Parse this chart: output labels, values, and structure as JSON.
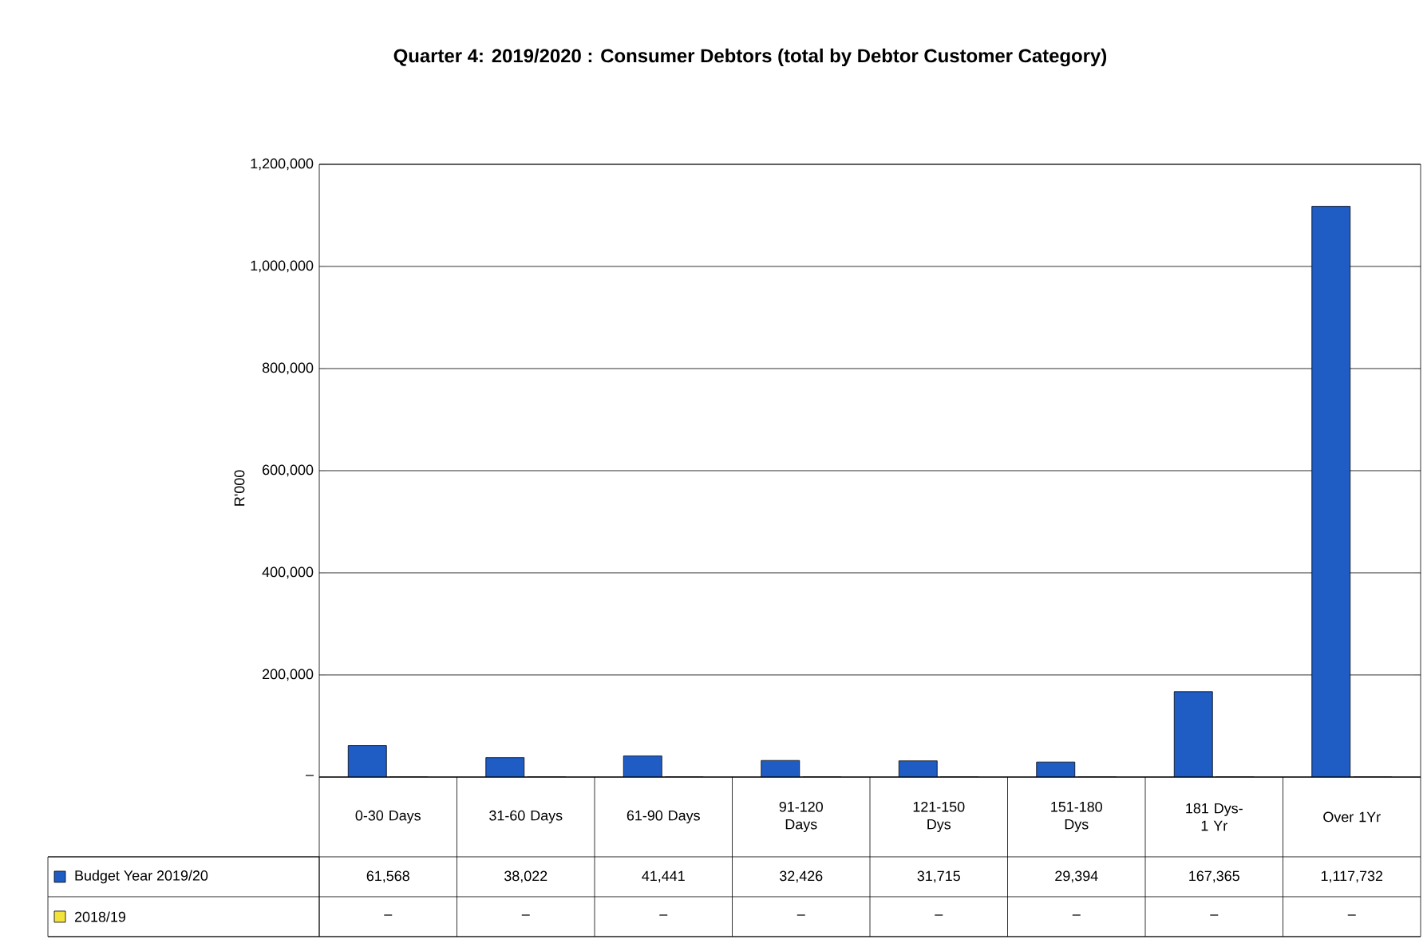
{
  "chart_data": {
    "type": "bar",
    "title": "Quarter 4: 2019/2020 : Consumer Debtors (total by Debtor Customer Category)",
    "ylabel": "R'000",
    "categories": [
      "0-30 Days",
      "31-60 Days",
      "61-90 Days",
      "91-120 Days",
      "121-150 Dys",
      "151-180 Dys",
      "181 Dys- 1 Yr",
      "Over 1Yr"
    ],
    "series": [
      {
        "name": "Budget Year 2019/20",
        "color": "#1f5cc4",
        "values": [
          61568,
          38022,
          41441,
          32426,
          31715,
          29394,
          167365,
          1117732
        ],
        "value_labels": [
          "61,568",
          "38,022",
          "41,441",
          "32,426",
          "31,715",
          "29,394",
          "167,365",
          "1,117,732"
        ]
      },
      {
        "name": "2018/19",
        "color": "#f2e33c",
        "values": [
          0,
          0,
          0,
          0,
          0,
          0,
          0,
          0
        ],
        "value_labels": [
          "–",
          "–",
          "–",
          "–",
          "–",
          "–",
          "–",
          "–"
        ]
      }
    ],
    "ylim": [
      0,
      1200000
    ],
    "yticks": [
      {
        "value": 0,
        "label": "–"
      },
      {
        "value": 200000,
        "label": "200,000"
      },
      {
        "value": 400000,
        "label": "400,000"
      },
      {
        "value": 600000,
        "label": "600,000"
      },
      {
        "value": 800000,
        "label": "800,000"
      },
      {
        "value": 1000000,
        "label": "1,000,000"
      },
      {
        "value": 1200000,
        "label": "1,200,000"
      }
    ],
    "grid": "y",
    "legend": "bottom"
  }
}
